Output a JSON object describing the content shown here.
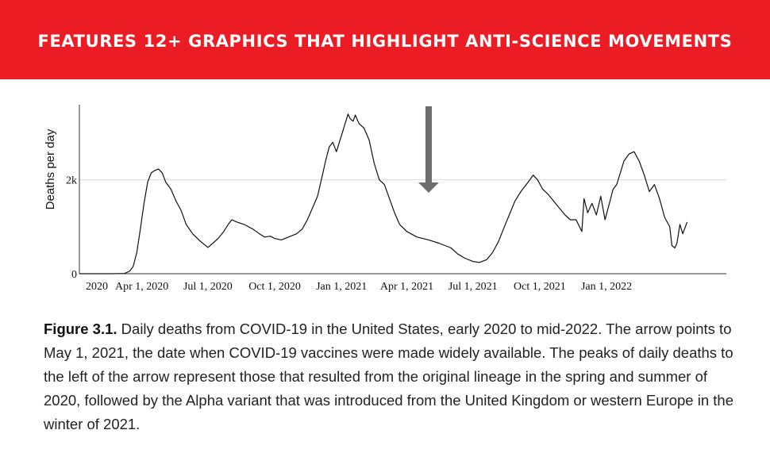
{
  "banner": {
    "title": "FEATURES 12+ GRAPHICS THAT HIGHLIGHT ANTI-SCIENCE MOVEMENTS"
  },
  "caption": {
    "label": "Figure 3.1.",
    "text": " Daily deaths from COVID-19 in the United States, early 2020 to mid-2022. The arrow points to May 1, 2021, the date when COVID-19 vaccines were made widely available. The peaks of daily deaths to the left of the arrow represent those that resulted from the original lineage in the spring and summer of 2020, followed by the Alpha variant that was introduced from the United Kingdom or western Europe in the winter of 2021."
  },
  "colors": {
    "banner": "#ec1c24",
    "line": "#111111",
    "arrow": "#6d6d6d",
    "grid": "#d9d9d9"
  },
  "chart_data": {
    "type": "line",
    "title": "",
    "xlabel": "",
    "ylabel": "Deaths per day",
    "ylim": [
      0,
      3600
    ],
    "xlim": [
      "2020-01-06",
      "2022-06-15"
    ],
    "grid": "horizontal at 2k",
    "yticks": [
      {
        "value": 0,
        "label": "0"
      },
      {
        "value": 2000,
        "label": "2k"
      }
    ],
    "xticks": [
      {
        "date": "2020-01-01",
        "label": "2020"
      },
      {
        "date": "2020-04-01",
        "label": "Apr 1, 2020"
      },
      {
        "date": "2020-07-01",
        "label": "Jul 1, 2020"
      },
      {
        "date": "2020-10-01",
        "label": "Oct 1, 2020"
      },
      {
        "date": "2021-01-01",
        "label": "Jan 1, 2021"
      },
      {
        "date": "2021-04-01",
        "label": "Apr 1, 2021"
      },
      {
        "date": "2021-07-01",
        "label": "Jul 1, 2021"
      },
      {
        "date": "2021-10-01",
        "label": "Oct 1, 2021"
      },
      {
        "date": "2022-01-01",
        "label": "Jan 1, 2022"
      }
    ],
    "annotation": {
      "type": "arrow",
      "date": "2021-05-01"
    },
    "series": [
      {
        "points": [
          [
            "2020-01-06",
            0
          ],
          [
            "2020-02-20",
            0
          ],
          [
            "2020-03-08",
            5
          ],
          [
            "2020-03-15",
            50
          ],
          [
            "2020-03-20",
            150
          ],
          [
            "2020-03-25",
            450
          ],
          [
            "2020-03-30",
            950
          ],
          [
            "2020-04-04",
            1500
          ],
          [
            "2020-04-09",
            1950
          ],
          [
            "2020-04-14",
            2150
          ],
          [
            "2020-04-19",
            2200
          ],
          [
            "2020-04-24",
            2230
          ],
          [
            "2020-04-29",
            2150
          ],
          [
            "2020-05-04",
            1950
          ],
          [
            "2020-05-11",
            1800
          ],
          [
            "2020-05-18",
            1550
          ],
          [
            "2020-05-25",
            1350
          ],
          [
            "2020-06-01",
            1050
          ],
          [
            "2020-06-10",
            850
          ],
          [
            "2020-06-20",
            700
          ],
          [
            "2020-07-01",
            560
          ],
          [
            "2020-07-08",
            650
          ],
          [
            "2020-07-15",
            750
          ],
          [
            "2020-07-22",
            880
          ],
          [
            "2020-07-29",
            1050
          ],
          [
            "2020-08-03",
            1150
          ],
          [
            "2020-08-10",
            1100
          ],
          [
            "2020-08-20",
            1050
          ],
          [
            "2020-09-01",
            950
          ],
          [
            "2020-09-10",
            850
          ],
          [
            "2020-09-17",
            780
          ],
          [
            "2020-09-25",
            800
          ],
          [
            "2020-10-01",
            750
          ],
          [
            "2020-10-10",
            720
          ],
          [
            "2020-10-20",
            780
          ],
          [
            "2020-10-31",
            850
          ],
          [
            "2020-11-08",
            950
          ],
          [
            "2020-11-15",
            1150
          ],
          [
            "2020-11-22",
            1400
          ],
          [
            "2020-11-29",
            1650
          ],
          [
            "2020-12-05",
            2050
          ],
          [
            "2020-12-10",
            2400
          ],
          [
            "2020-12-15",
            2700
          ],
          [
            "2020-12-20",
            2800
          ],
          [
            "2020-12-25",
            2600
          ],
          [
            "2020-12-30",
            2850
          ],
          [
            "2021-01-05",
            3150
          ],
          [
            "2021-01-10",
            3400
          ],
          [
            "2021-01-13",
            3300
          ],
          [
            "2021-01-17",
            3250
          ],
          [
            "2021-01-20",
            3380
          ],
          [
            "2021-01-25",
            3200
          ],
          [
            "2021-02-01",
            3100
          ],
          [
            "2021-02-08",
            2850
          ],
          [
            "2021-02-15",
            2350
          ],
          [
            "2021-02-22",
            2000
          ],
          [
            "2021-03-01",
            1900
          ],
          [
            "2021-03-08",
            1600
          ],
          [
            "2021-03-15",
            1300
          ],
          [
            "2021-03-22",
            1050
          ],
          [
            "2021-04-01",
            900
          ],
          [
            "2021-04-15",
            780
          ],
          [
            "2021-05-01",
            720
          ],
          [
            "2021-05-15",
            650
          ],
          [
            "2021-06-01",
            550
          ],
          [
            "2021-06-10",
            420
          ],
          [
            "2021-06-20",
            330
          ],
          [
            "2021-07-01",
            260
          ],
          [
            "2021-07-10",
            240
          ],
          [
            "2021-07-20",
            300
          ],
          [
            "2021-07-28",
            450
          ],
          [
            "2021-08-05",
            680
          ],
          [
            "2021-08-12",
            950
          ],
          [
            "2021-08-20",
            1250
          ],
          [
            "2021-08-28",
            1550
          ],
          [
            "2021-09-05",
            1750
          ],
          [
            "2021-09-15",
            1950
          ],
          [
            "2021-09-22",
            2100
          ],
          [
            "2021-09-28",
            2000
          ],
          [
            "2021-10-05",
            1800
          ],
          [
            "2021-10-12",
            1700
          ],
          [
            "2021-10-20",
            1550
          ],
          [
            "2021-10-28",
            1400
          ],
          [
            "2021-11-05",
            1250
          ],
          [
            "2021-11-12",
            1150
          ],
          [
            "2021-11-20",
            1150
          ],
          [
            "2021-11-28",
            900
          ],
          [
            "2021-12-01",
            1600
          ],
          [
            "2021-12-06",
            1300
          ],
          [
            "2021-12-12",
            1500
          ],
          [
            "2021-12-18",
            1250
          ],
          [
            "2021-12-24",
            1650
          ],
          [
            "2021-12-30",
            1150
          ],
          [
            "2022-01-05",
            1500
          ],
          [
            "2022-01-10",
            1800
          ],
          [
            "2022-01-15",
            1900
          ],
          [
            "2022-01-20",
            2150
          ],
          [
            "2022-01-25",
            2400
          ],
          [
            "2022-02-01",
            2550
          ],
          [
            "2022-02-08",
            2600
          ],
          [
            "2022-02-15",
            2400
          ],
          [
            "2022-02-22",
            2100
          ],
          [
            "2022-03-01",
            1750
          ],
          [
            "2022-03-08",
            1900
          ],
          [
            "2022-03-15",
            1600
          ],
          [
            "2022-03-22",
            1200
          ],
          [
            "2022-03-29",
            1000
          ],
          [
            "2022-04-01",
            600
          ],
          [
            "2022-04-05",
            550
          ],
          [
            "2022-04-08",
            650
          ],
          [
            "2022-04-12",
            1050
          ],
          [
            "2022-04-16",
            850
          ],
          [
            "2022-04-22",
            1100
          ]
        ]
      }
    ]
  }
}
